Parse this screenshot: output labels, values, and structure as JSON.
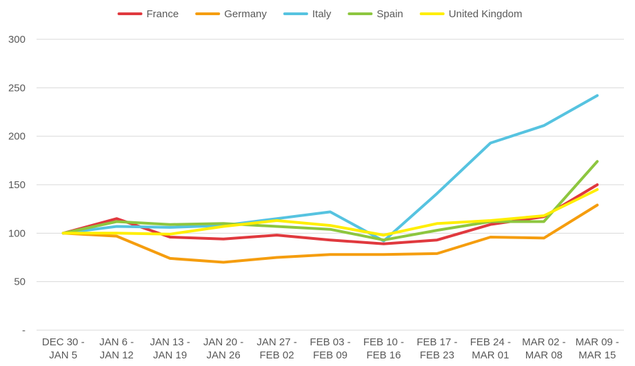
{
  "chart_data": {
    "type": "line",
    "title": "",
    "xlabel": "",
    "ylabel": "",
    "ylim": [
      0,
      300
    ],
    "yticks": [
      {
        "value": 0,
        "label": "-"
      },
      {
        "value": 50,
        "label": "50"
      },
      {
        "value": 100,
        "label": "100"
      },
      {
        "value": 150,
        "label": "150"
      },
      {
        "value": 200,
        "label": "200"
      },
      {
        "value": 250,
        "label": "250"
      },
      {
        "value": 300,
        "label": "300"
      }
    ],
    "grid": true,
    "legend_position": "top",
    "categories": [
      [
        "DEC 30 -",
        "JAN 5"
      ],
      [
        "JAN 6 -",
        "JAN 12"
      ],
      [
        "JAN 13 -",
        "JAN 19"
      ],
      [
        "JAN 20 -",
        "JAN 26"
      ],
      [
        "JAN 27 -",
        "FEB 02"
      ],
      [
        "FEB 03 -",
        "FEB 09"
      ],
      [
        "FEB 10 -",
        "FEB 16"
      ],
      [
        "FEB 17 -",
        "FEB 23"
      ],
      [
        "FEB 24 -",
        "MAR 01"
      ],
      [
        "MAR 02 -",
        "MAR 08"
      ],
      [
        "MAR 09 -",
        "MAR 15"
      ]
    ],
    "series": [
      {
        "name": "France",
        "color": "#e0393e",
        "values": [
          100,
          115,
          96,
          94,
          98,
          93,
          89,
          93,
          109,
          117,
          150
        ]
      },
      {
        "name": "Germany",
        "color": "#f59d0e",
        "values": [
          100,
          97,
          74,
          70,
          75,
          78,
          78,
          79,
          96,
          95,
          129
        ]
      },
      {
        "name": "Italy",
        "color": "#56c3e0",
        "values": [
          100,
          107,
          106,
          108,
          115,
          122,
          92,
          141,
          193,
          211,
          242
        ]
      },
      {
        "name": "Spain",
        "color": "#8dc63f",
        "values": [
          100,
          112,
          109,
          110,
          107,
          104,
          93,
          103,
          112,
          112,
          174
        ]
      },
      {
        "name": "United Kingdom",
        "color": "#ffee00",
        "values": [
          100,
          100,
          99,
          107,
          113,
          108,
          98,
          110,
          113,
          118,
          145
        ]
      }
    ]
  }
}
